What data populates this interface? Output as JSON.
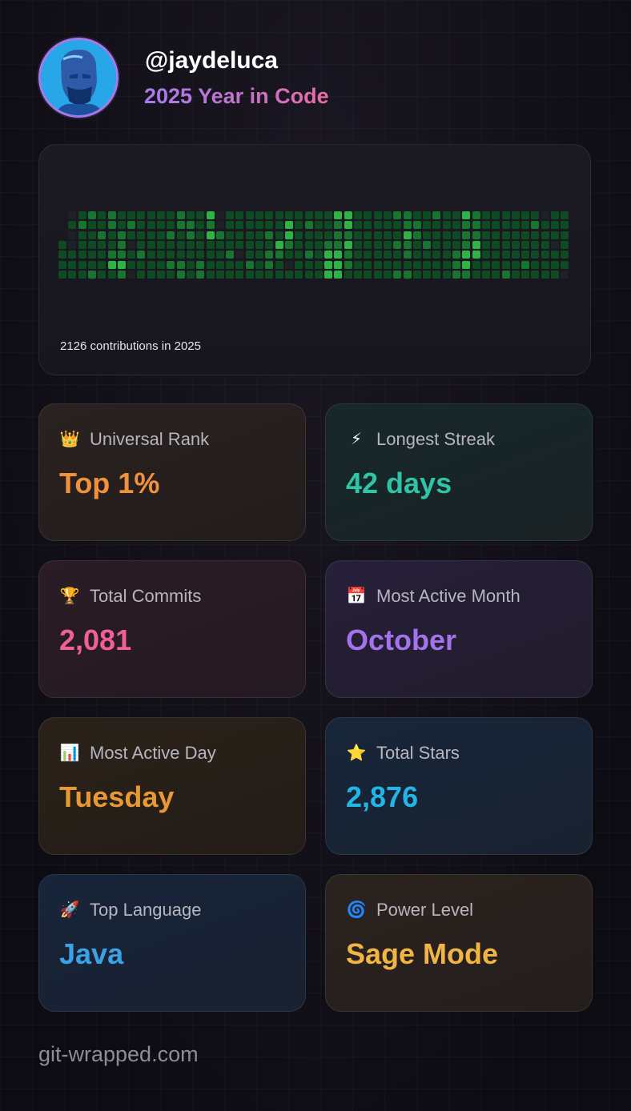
{
  "profile": {
    "handle": "@jaydeluca",
    "subtitle": "2025 Year in Code"
  },
  "contributions": {
    "caption": "2126 contributions in 2025",
    "columns": 52,
    "rows": 7,
    "levels": "0101111010011112111112111112112111122112311122232121011011112111111111111111111211212211122122111111111223231111002111111112111111011111112111111111121221111321113321011111111121121111111111112333322233333232211111111111111111111111111111211211222322121221111111211121111111111111111122232223322223311111111111111111111112111111111111211211111011111111101111111111111111111111111111111111111",
    "palette": [
      "#1f2127",
      "#0f4b22",
      "#18752f",
      "#2fb346",
      "#45d45a"
    ]
  },
  "stats": [
    {
      "icon": "crown-icon",
      "emoji": "👑",
      "label": "Universal Rank",
      "value": "Top 1%",
      "color": "#f0923b",
      "bg_from": "#2a2220",
      "bg_to": "#221c1c"
    },
    {
      "icon": "lightning-icon",
      "emoji": "⚡",
      "label": "Longest Streak",
      "value": "42 days",
      "color": "#2ec4a6",
      "bg_from": "#17282a",
      "bg_to": "#1a2224"
    },
    {
      "icon": "trophy-icon",
      "emoji": "🏆",
      "label": "Total Commits",
      "value": "2,081",
      "color": "#ef5f98",
      "bg_from": "#2b1c26",
      "bg_to": "#241a21"
    },
    {
      "icon": "calendar-icon",
      "emoji": "📅",
      "label": "Most Active Month",
      "value": "October",
      "color": "#a273ea",
      "bg_from": "#27203a",
      "bg_to": "#211c2c"
    },
    {
      "icon": "bar-chart-icon",
      "emoji": "📊",
      "label": "Most Active Day",
      "value": "Tuesday",
      "color": "#e79a33",
      "bg_from": "#2a2219",
      "bg_to": "#231c18"
    },
    {
      "icon": "star-icon",
      "emoji": "⭐",
      "label": "Total Stars",
      "value": "2,876",
      "color": "#22b6e8",
      "bg_from": "#17263a",
      "bg_to": "#1a2230"
    },
    {
      "icon": "rocket-icon",
      "emoji": "🚀",
      "label": "Top Language",
      "value": "Java",
      "color": "#3aa3e6",
      "bg_from": "#17243a",
      "bg_to": "#1a2130"
    },
    {
      "icon": "spiral-icon",
      "emoji": "🌀",
      "label": "Power Level",
      "value": "Sage Mode",
      "color": "#f0b542",
      "bg_from": "#2b231f",
      "bg_to": "#241e1d"
    }
  ],
  "footer": {
    "site": "git-wrapped.com"
  }
}
